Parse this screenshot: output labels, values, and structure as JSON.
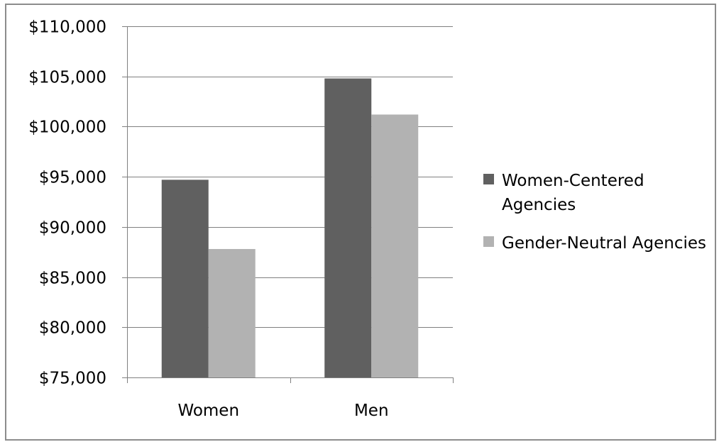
{
  "chart_data": {
    "type": "bar",
    "title": "",
    "xlabel": "",
    "ylabel": "",
    "categories": [
      "Women",
      "Men"
    ],
    "series": [
      {
        "name": "Women-Centered Agencies",
        "values": [
          94700,
          104800
        ],
        "color": "#606060"
      },
      {
        "name": "Gender-Neutral Agencies",
        "values": [
          87800,
          101200
        ],
        "color": "#b2b2b2"
      }
    ],
    "ylim": [
      75000,
      110000
    ],
    "y_ticks": [
      75000,
      80000,
      85000,
      90000,
      95000,
      100000,
      105000,
      110000
    ],
    "y_tick_labels": [
      "$75,000",
      "$80,000",
      "$85,000",
      "$90,000",
      "$95,000",
      "$100,000",
      "$105,000",
      "$110,000"
    ],
    "grid": "horizontal",
    "legend": {
      "position": "right",
      "entries": [
        {
          "lines": [
            "Women-Centered",
            "Agencies"
          ]
        },
        {
          "lines": [
            "Gender-Neutral Agencies"
          ]
        }
      ]
    },
    "colors": {
      "gridline": "#808080",
      "axis": "#808080",
      "frame": "#8c8c8c"
    }
  }
}
